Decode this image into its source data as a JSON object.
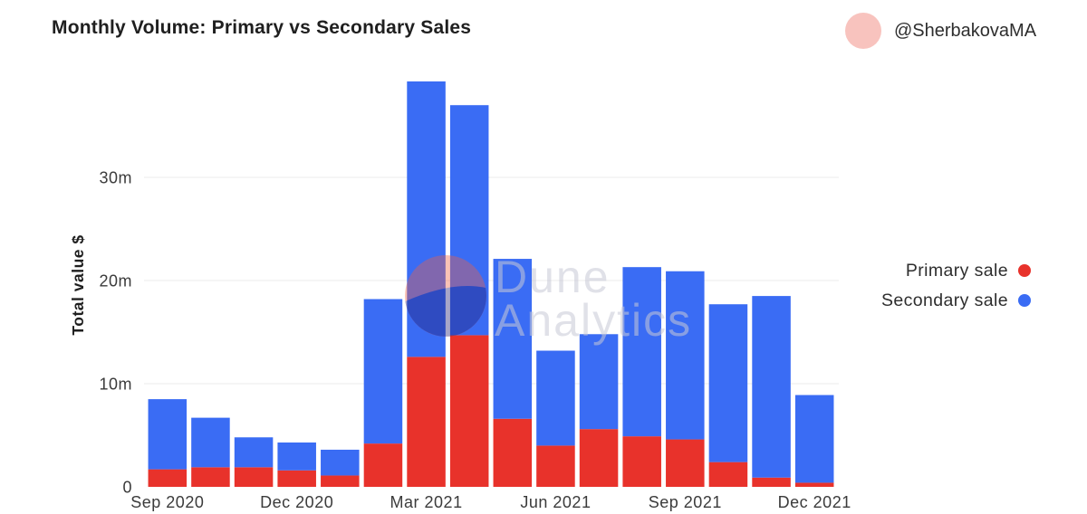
{
  "header": {
    "author": "@SherbakovaMA"
  },
  "colors": {
    "avatar": "#f8c3be"
  },
  "watermark": {
    "icon": "dune-logo-icon",
    "line1": "Dune",
    "line2": "Analytics"
  },
  "chart_data": {
    "type": "bar",
    "stacked": true,
    "title": "Monthly Volume: Primary vs Secondary Sales",
    "ylabel": "Total value $",
    "x": [
      "2020-09",
      "2020-10",
      "2020-11",
      "2020-12",
      "2021-01",
      "2021-02",
      "2021-03",
      "2021-04",
      "2021-05",
      "2021-06",
      "2021-07",
      "2021-08",
      "2021-09",
      "2021-10",
      "2021-11",
      "2021-12"
    ],
    "x_ticks": [
      {
        "x": "2020-09",
        "label": "Sep 2020"
      },
      {
        "x": "2020-12",
        "label": "Dec 2020"
      },
      {
        "x": "2021-03",
        "label": "Mar 2021"
      },
      {
        "x": "2021-06",
        "label": "Jun 2021"
      },
      {
        "x": "2021-09",
        "label": "Sep 2021"
      },
      {
        "x": "2021-12",
        "label": "Dec 2021"
      }
    ],
    "y_ticks": [
      0,
      10,
      20,
      30
    ],
    "y_tick_labels": [
      "0",
      "10m",
      "20m",
      "30m"
    ],
    "ylim": [
      0,
      40
    ],
    "grid": true,
    "legend": "right",
    "series": [
      {
        "name": "Primary sale",
        "color": "#e8322b",
        "values": [
          1.7,
          1.9,
          1.9,
          1.6,
          1.1,
          4.2,
          12.6,
          14.7,
          6.6,
          4.0,
          5.6,
          4.9,
          4.6,
          2.4,
          0.9,
          0.4
        ]
      },
      {
        "name": "Secondary sale",
        "color": "#3a6cf4",
        "values": [
          6.8,
          4.8,
          2.9,
          2.7,
          2.5,
          14.0,
          26.7,
          22.3,
          15.5,
          9.2,
          9.2,
          16.4,
          16.3,
          15.3,
          17.6,
          8.5
        ]
      }
    ]
  }
}
